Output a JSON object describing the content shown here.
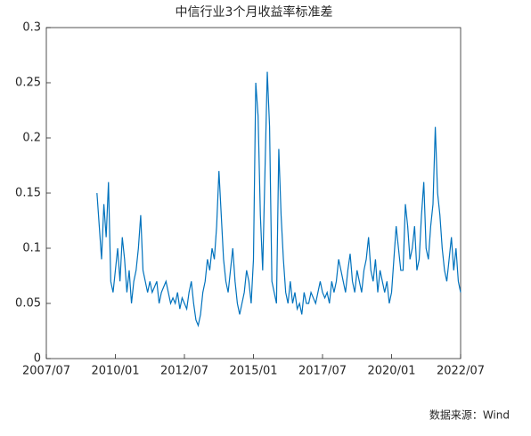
{
  "chart_data": {
    "type": "line",
    "title": "中信行业3个月收益率标准差",
    "source": "数据来源：Wind",
    "x": [
      "2009/05",
      "2009/06",
      "2009/07",
      "2009/08",
      "2009/09",
      "2009/10",
      "2009/11",
      "2009/12",
      "2010/01",
      "2010/02",
      "2010/03",
      "2010/04",
      "2010/05",
      "2010/06",
      "2010/07",
      "2010/08",
      "2010/09",
      "2010/10",
      "2010/11",
      "2010/12",
      "2011/01",
      "2011/02",
      "2011/03",
      "2011/04",
      "2011/05",
      "2011/06",
      "2011/07",
      "2011/08",
      "2011/09",
      "2011/10",
      "2011/11",
      "2011/12",
      "2012/01",
      "2012/02",
      "2012/03",
      "2012/04",
      "2012/05",
      "2012/06",
      "2012/07",
      "2012/08",
      "2012/09",
      "2012/10",
      "2012/11",
      "2012/12",
      "2013/01",
      "2013/02",
      "2013/03",
      "2013/04",
      "2013/05",
      "2013/06",
      "2013/07",
      "2013/08",
      "2013/09",
      "2013/10",
      "2013/11",
      "2013/12",
      "2014/01",
      "2014/02",
      "2014/03",
      "2014/04",
      "2014/05",
      "2014/06",
      "2014/07",
      "2014/08",
      "2014/09",
      "2014/10",
      "2014/11",
      "2014/12",
      "2015/01",
      "2015/02",
      "2015/03",
      "2015/04",
      "2015/05",
      "2015/06",
      "2015/07",
      "2015/08",
      "2015/09",
      "2015/10",
      "2015/11",
      "2015/12",
      "2016/01",
      "2016/02",
      "2016/03",
      "2016/04",
      "2016/05",
      "2016/06",
      "2016/07",
      "2016/08",
      "2016/09",
      "2016/10",
      "2016/11",
      "2016/12",
      "2017/01",
      "2017/02",
      "2017/03",
      "2017/04",
      "2017/05",
      "2017/06",
      "2017/07",
      "2017/08",
      "2017/09",
      "2017/10",
      "2017/11",
      "2017/12",
      "2018/01",
      "2018/02",
      "2018/03",
      "2018/04",
      "2018/05",
      "2018/06",
      "2018/07",
      "2018/08",
      "2018/09",
      "2018/10",
      "2018/11",
      "2018/12",
      "2019/01",
      "2019/02",
      "2019/03",
      "2019/04",
      "2019/05",
      "2019/06",
      "2019/07",
      "2019/08",
      "2019/09",
      "2019/10",
      "2019/11",
      "2019/12",
      "2020/01",
      "2020/02",
      "2020/03",
      "2020/04",
      "2020/05",
      "2020/06",
      "2020/07",
      "2020/08",
      "2020/09",
      "2020/10",
      "2020/11",
      "2020/12",
      "2021/01",
      "2021/02",
      "2021/03",
      "2021/04",
      "2021/05",
      "2021/06",
      "2021/07",
      "2021/08",
      "2021/09",
      "2021/10",
      "2021/11",
      "2021/12",
      "2022/01",
      "2022/02",
      "2022/03",
      "2022/04",
      "2022/05",
      "2022/06",
      "2022/07"
    ],
    "series": [
      {
        "color": "#0072bd",
        "values": [
          0.15,
          0.12,
          0.09,
          0.14,
          0.11,
          0.16,
          0.07,
          0.06,
          0.08,
          0.1,
          0.07,
          0.11,
          0.09,
          0.06,
          0.08,
          0.05,
          0.07,
          0.08,
          0.1,
          0.13,
          0.08,
          0.07,
          0.06,
          0.07,
          0.06,
          0.065,
          0.07,
          0.05,
          0.06,
          0.065,
          0.07,
          0.06,
          0.05,
          0.055,
          0.05,
          0.06,
          0.045,
          0.055,
          0.05,
          0.045,
          0.06,
          0.07,
          0.05,
          0.035,
          0.03,
          0.04,
          0.06,
          0.07,
          0.09,
          0.08,
          0.1,
          0.09,
          0.12,
          0.17,
          0.13,
          0.09,
          0.07,
          0.06,
          0.08,
          0.1,
          0.07,
          0.05,
          0.04,
          0.05,
          0.06,
          0.08,
          0.07,
          0.05,
          0.09,
          0.25,
          0.22,
          0.13,
          0.08,
          0.17,
          0.26,
          0.21,
          0.07,
          0.06,
          0.05,
          0.19,
          0.13,
          0.09,
          0.06,
          0.05,
          0.07,
          0.05,
          0.06,
          0.045,
          0.05,
          0.04,
          0.06,
          0.05,
          0.05,
          0.06,
          0.055,
          0.05,
          0.06,
          0.07,
          0.06,
          0.055,
          0.06,
          0.05,
          0.07,
          0.06,
          0.07,
          0.09,
          0.08,
          0.07,
          0.06,
          0.08,
          0.095,
          0.07,
          0.06,
          0.08,
          0.07,
          0.06,
          0.08,
          0.09,
          0.11,
          0.08,
          0.07,
          0.09,
          0.06,
          0.08,
          0.07,
          0.06,
          0.07,
          0.05,
          0.06,
          0.09,
          0.12,
          0.1,
          0.08,
          0.08,
          0.14,
          0.12,
          0.09,
          0.1,
          0.12,
          0.08,
          0.09,
          0.13,
          0.16,
          0.1,
          0.09,
          0.12,
          0.14,
          0.21,
          0.15,
          0.13,
          0.1,
          0.08,
          0.07,
          0.09,
          0.11,
          0.08,
          0.1,
          0.07,
          0.06
        ]
      }
    ],
    "xlim": [
      "2007/07",
      "2022/07"
    ],
    "xticks": [
      "2007/07",
      "2010/01",
      "2012/07",
      "2015/01",
      "2017/07",
      "2020/01",
      "2022/07"
    ],
    "ylim": [
      0,
      0.3
    ],
    "yticks": [
      0,
      0.05,
      0.1,
      0.15,
      0.2,
      0.25,
      0.3
    ]
  }
}
